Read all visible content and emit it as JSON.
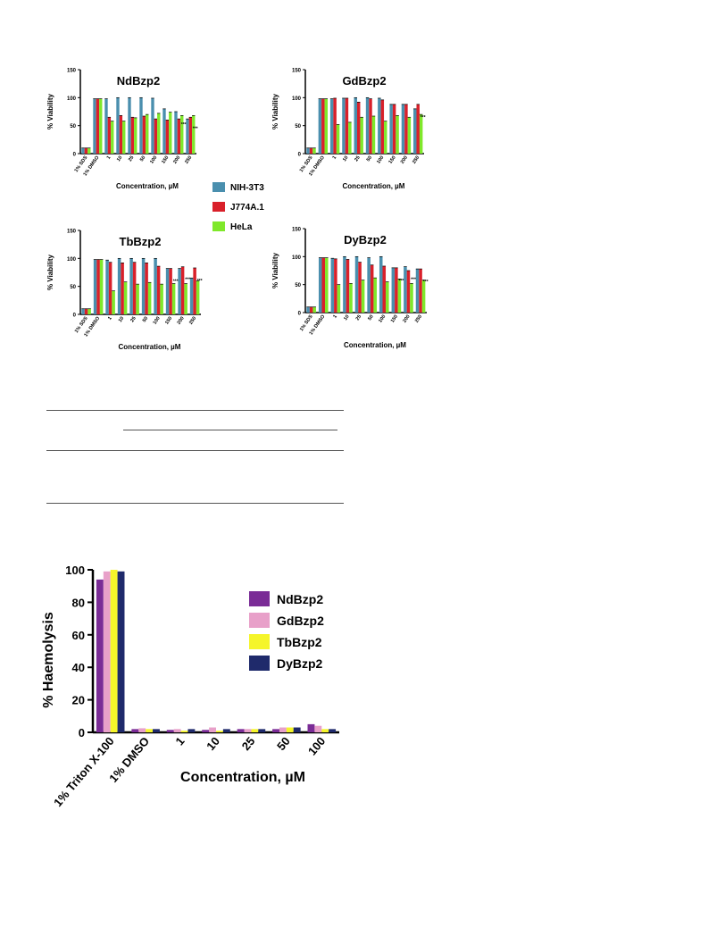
{
  "colors": {
    "NIH-3T3": "#4a8fae",
    "J774A.1": "#d9202a",
    "HeLa": "#7fe82a",
    "NdBzp2": "#7a2c96",
    "GdBzp2": "#e8a0c9",
    "TbBzp2": "#f5f52a",
    "DyBzp2": "#1f2a6b"
  },
  "chart_data": [
    {
      "type": "bar",
      "title": "NdBzp2",
      "xlabel": "Concentration, µM",
      "ylabel": "% Viability",
      "ylim": [
        0,
        150
      ],
      "yticks": [
        "0",
        "50",
        "100",
        "150"
      ],
      "categories": [
        "1% SDS",
        "1% DMSO",
        "1",
        "10",
        "25",
        "50",
        "100",
        "150",
        "200",
        "250"
      ],
      "series": [
        {
          "name": "NIH-3T3",
          "values": [
            10,
            98,
            98,
            100,
            100,
            100,
            99,
            80,
            75,
            62
          ]
        },
        {
          "name": "J774A.1",
          "values": [
            10,
            98,
            65,
            68,
            65,
            67,
            62,
            60,
            62,
            65
          ]
        },
        {
          "name": "HeLa",
          "values": [
            10,
            98,
            58,
            58,
            64,
            70,
            72,
            74,
            68,
            68
          ]
        }
      ],
      "annotations": [
        "***",
        "***"
      ]
    },
    {
      "type": "bar",
      "title": "GdBzp2",
      "xlabel": "Concentration, µM",
      "ylabel": "% Viability",
      "ylim": [
        0,
        150
      ],
      "yticks": [
        "0",
        "50",
        "100",
        "150"
      ],
      "categories": [
        "1% SDS",
        "1% DMSO",
        "1",
        "10",
        "25",
        "50",
        "100",
        "150",
        "200",
        "250"
      ],
      "series": [
        {
          "name": "NIH-3T3",
          "values": [
            10,
            98,
            98,
            99,
            100,
            100,
            99,
            88,
            88,
            80
          ]
        },
        {
          "name": "J774A.1",
          "values": [
            10,
            98,
            99,
            99,
            92,
            98,
            96,
            88,
            88,
            88
          ]
        },
        {
          "name": "HeLa",
          "values": [
            10,
            98,
            52,
            56,
            65,
            67,
            58,
            68,
            65,
            70
          ]
        }
      ],
      "annotations": [
        "***"
      ]
    },
    {
      "type": "bar",
      "title": "TbBzp2",
      "xlabel": "Concentration, µM",
      "ylabel": "% Viability",
      "ylim": [
        0,
        150
      ],
      "yticks": [
        "0",
        "50",
        "100",
        "150"
      ],
      "categories": [
        "1% SDS",
        "1% DMSO",
        "1",
        "10",
        "25",
        "50",
        "100",
        "150",
        "200",
        "250"
      ],
      "series": [
        {
          "name": "NIH-3T3",
          "values": [
            10,
            98,
            97,
            100,
            100,
            100,
            100,
            82,
            82,
            65
          ]
        },
        {
          "name": "J774A.1",
          "values": [
            10,
            98,
            93,
            92,
            93,
            92,
            86,
            82,
            85,
            83
          ]
        },
        {
          "name": "HeLa",
          "values": [
            10,
            98,
            42,
            58,
            54,
            57,
            54,
            55,
            55,
            60
          ]
        }
      ],
      "annotations": [
        "***",
        "***",
        "***"
      ]
    },
    {
      "type": "bar",
      "title": "DyBzp2",
      "xlabel": "Concentration, µM",
      "ylabel": "% Viability",
      "ylim": [
        0,
        150
      ],
      "yticks": [
        "0",
        "50",
        "100",
        "150"
      ],
      "categories": [
        "1% SDS",
        "1% DMSO",
        "1",
        "10",
        "25",
        "50",
        "100",
        "150",
        "200",
        "250"
      ],
      "series": [
        {
          "name": "NIH-3T3",
          "values": [
            10,
            98,
            97,
            100,
            100,
            98,
            100,
            80,
            82,
            78
          ]
        },
        {
          "name": "J774A.1",
          "values": [
            10,
            98,
            96,
            95,
            90,
            85,
            83,
            80,
            75,
            78
          ]
        },
        {
          "name": "HeLa",
          "values": [
            10,
            98,
            50,
            52,
            58,
            62,
            55,
            60,
            52,
            58
          ]
        }
      ],
      "annotations": [
        "***",
        "***",
        "***"
      ]
    },
    {
      "type": "bar",
      "title": "",
      "xlabel": "Concentration, µM",
      "ylabel": "% Haemolysis",
      "ylim": [
        0,
        100
      ],
      "yticks": [
        "0",
        "20",
        "40",
        "60",
        "80",
        "100"
      ],
      "categories": [
        "1% Triton X-100",
        "1% DMSO",
        "1",
        "10",
        "25",
        "50",
        "100"
      ],
      "series": [
        {
          "name": "NdBzp2",
          "values": [
            94,
            2,
            1.5,
            1.5,
            2,
            2,
            5
          ]
        },
        {
          "name": "GdBzp2",
          "values": [
            99,
            2.5,
            2,
            3,
            2,
            3,
            4
          ]
        },
        {
          "name": "TbBzp2",
          "values": [
            100,
            2,
            1,
            1,
            2,
            3,
            2
          ]
        },
        {
          "name": "DyBzp2",
          "values": [
            99,
            2,
            2,
            2,
            2,
            3,
            2
          ]
        }
      ],
      "legend": "right"
    }
  ],
  "viability_legend": [
    {
      "label": "NIH-3T3"
    },
    {
      "label": "J774A.1"
    },
    {
      "label": "HeLa"
    }
  ]
}
